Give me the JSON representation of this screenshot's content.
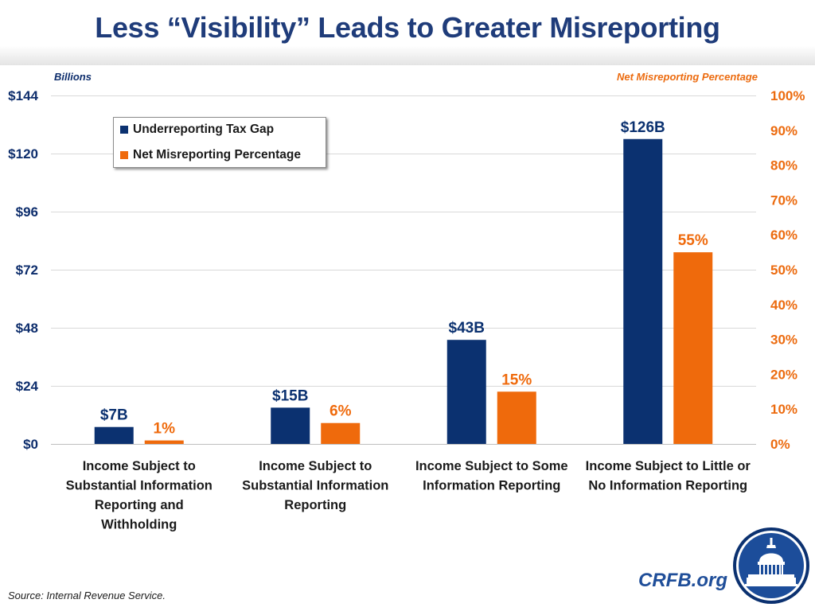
{
  "title": "Less “Visibility” Leads to Greater Misreporting",
  "source": "Source: Internal Revenue Service.",
  "brand": "CRFB.org",
  "colors": {
    "tax_gap": "#0b3170",
    "misreporting": "#ef6a0c",
    "title": "#1f3c7a",
    "left_axis_text": "#0d2d6c",
    "right_axis_text": "#ec6b0f"
  },
  "logo": {
    "name": "capitol-seal",
    "icon": "capitol-dome-icon"
  },
  "chart_data": {
    "type": "bar",
    "title": "Less “Visibility” Leads to Greater Misreporting",
    "categories": [
      [
        "Income Subject to",
        "Substantial Information",
        "Reporting and",
        "Withholding"
      ],
      [
        "Income Subject to",
        "Substantial Information",
        "Reporting"
      ],
      [
        "Income Subject to Some",
        "Information Reporting"
      ],
      [
        "Income Subject to Little or",
        "No Information Reporting"
      ]
    ],
    "series": [
      {
        "name": "Underreporting Tax Gap",
        "axis": "left",
        "unit": "billions",
        "values": [
          7,
          15,
          43,
          126
        ],
        "labels": [
          "$7B",
          "$15B",
          "$43B",
          "$126B"
        ]
      },
      {
        "name": "Net Misreporting Percentage",
        "axis": "right",
        "unit": "percent",
        "values": [
          1,
          6,
          15,
          55
        ],
        "labels": [
          "1%",
          "6%",
          "15%",
          "55%"
        ]
      }
    ],
    "y_left": {
      "label": "Billions",
      "range": [
        0,
        144
      ],
      "ticks": [
        0,
        24,
        48,
        72,
        96,
        120,
        144
      ],
      "tick_labels": [
        "$0",
        "$24",
        "$48",
        "$72",
        "$96",
        "$120",
        "$144"
      ]
    },
    "y_right": {
      "label": "Net Misreporting Percentage",
      "range": [
        0,
        100
      ],
      "ticks": [
        0,
        10,
        20,
        30,
        40,
        50,
        60,
        70,
        80,
        90,
        100
      ],
      "tick_labels": [
        "0%",
        "10%",
        "20%",
        "30%",
        "40%",
        "50%",
        "60%",
        "70%",
        "80%",
        "90%",
        "100%"
      ]
    },
    "gridlines": true,
    "legend_position": "top-left"
  }
}
